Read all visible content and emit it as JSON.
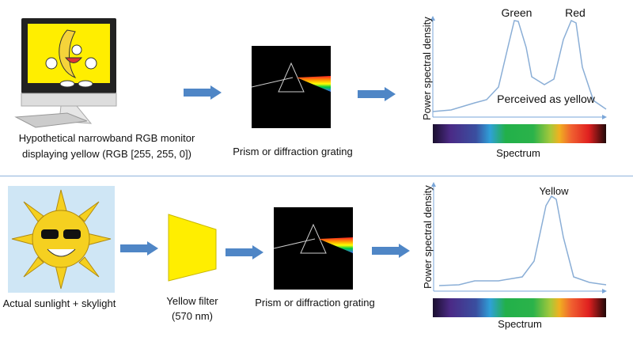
{
  "top": {
    "source_label_1": "Hypothetical narrowband RGB monitor",
    "source_label_2": "displaying yellow (RGB [255, 255, 0])",
    "prism_label": "Prism or diffraction grating",
    "chart": {
      "ylabel": "Power spectral density",
      "xlabel": "Spectrum",
      "peak1": "Green",
      "peak2": "Red",
      "annotation": "Perceived as yellow"
    }
  },
  "bottom": {
    "source_label": "Actual sunlight + skylight",
    "filter_label_1": "Yellow filter",
    "filter_label_2": "(570 nm)",
    "prism_label": "Prism or diffraction grating",
    "chart": {
      "ylabel": "Power spectral density",
      "xlabel": "Spectrum",
      "peak": "Yellow"
    }
  },
  "colors": {
    "arrow": "#4f86c6",
    "curve": "#8aaed6",
    "filter": "#ffee00",
    "screen": "#ffee00"
  }
}
